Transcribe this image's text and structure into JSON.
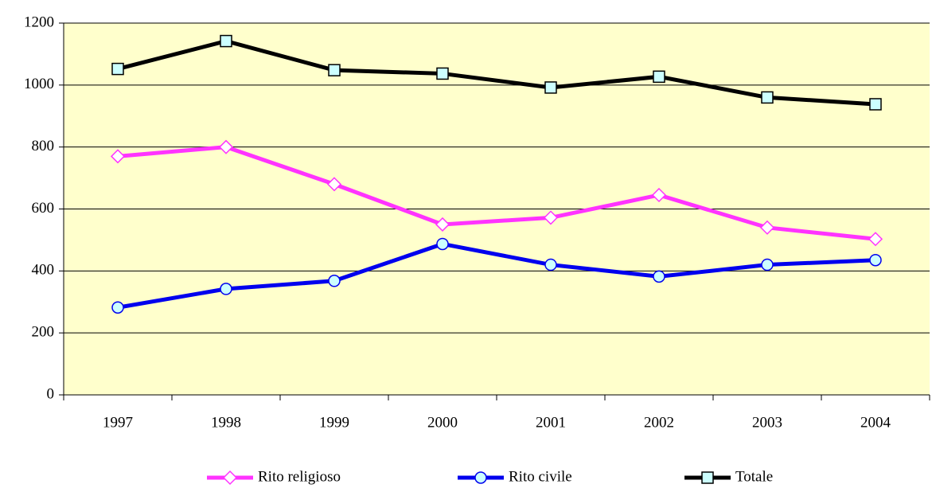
{
  "chart_data": {
    "type": "line",
    "categories": [
      "1997",
      "1998",
      "1999",
      "2000",
      "2001",
      "2002",
      "2003",
      "2004"
    ],
    "series": [
      {
        "name": "Rito religioso",
        "color": "#ff33ff",
        "marker": "diamond",
        "values": [
          770,
          800,
          680,
          550,
          572,
          645,
          540,
          503
        ]
      },
      {
        "name": "Rito civile",
        "color": "#0000ee",
        "marker": "circle",
        "values": [
          282,
          342,
          368,
          487,
          420,
          382,
          420,
          435
        ]
      },
      {
        "name": "Totale",
        "color": "#000000",
        "marker": "square",
        "values": [
          1052,
          1142,
          1048,
          1037,
          992,
          1027,
          960,
          938
        ]
      }
    ],
    "ylim": [
      0,
      1200
    ],
    "yticks": [
      0,
      200,
      400,
      600,
      800,
      1000,
      1200
    ],
    "grid": true,
    "legend": "bottom"
  }
}
